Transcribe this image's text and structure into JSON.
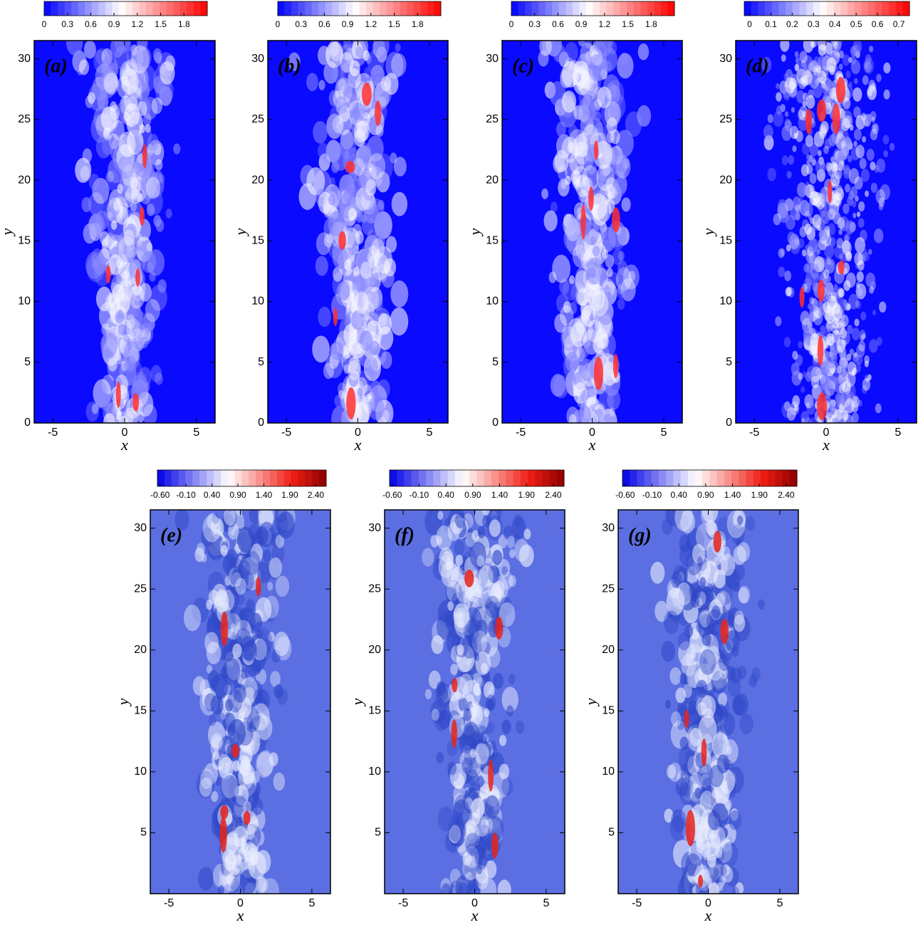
{
  "chart_data": [
    {
      "type": "contour",
      "panel_label": "(a)",
      "xlabel": "x",
      "ylabel": "y",
      "xlim": [
        -6.3,
        6.3
      ],
      "ylim": [
        0,
        31.5
      ],
      "xticks": [
        -5,
        0,
        5
      ],
      "yticks": [
        0,
        5,
        10,
        15,
        20,
        25,
        30
      ],
      "colorbar_lim": [
        0,
        2.1
      ],
      "colorbar_ticks": [
        0,
        0.3,
        0.6,
        0.9,
        1.2,
        1.5,
        1.8
      ]
    },
    {
      "type": "contour",
      "panel_label": "(b)",
      "xlabel": "x",
      "ylabel": "y",
      "xlim": [
        -6.3,
        6.3
      ],
      "ylim": [
        0,
        31.5
      ],
      "xticks": [
        -5,
        0,
        5
      ],
      "yticks": [
        0,
        5,
        10,
        15,
        20,
        25,
        30
      ],
      "colorbar_lim": [
        0,
        2.1
      ],
      "colorbar_ticks": [
        0,
        0.3,
        0.6,
        0.9,
        1.2,
        1.5,
        1.8
      ]
    },
    {
      "type": "contour",
      "panel_label": "(c)",
      "xlabel": "x",
      "ylabel": "y",
      "xlim": [
        -6.3,
        6.3
      ],
      "ylim": [
        0,
        31.5
      ],
      "xticks": [
        -5,
        0,
        5
      ],
      "yticks": [
        0,
        5,
        10,
        15,
        20,
        25,
        30
      ],
      "colorbar_lim": [
        0,
        2.1
      ],
      "colorbar_ticks": [
        0,
        0.3,
        0.6,
        0.9,
        1.2,
        1.5,
        1.8
      ]
    },
    {
      "type": "contour",
      "panel_label": "(d)",
      "xlabel": "x",
      "ylabel": "y",
      "xlim": [
        -6.3,
        6.3
      ],
      "ylim": [
        0,
        31.5
      ],
      "xticks": [
        -5,
        0,
        5
      ],
      "yticks": [
        0,
        5,
        10,
        15,
        20,
        25,
        30
      ],
      "colorbar_lim": [
        -0.025,
        0.75
      ],
      "colorbar_ticks": [
        0,
        0.1,
        0.2,
        0.3,
        0.4,
        0.5,
        0.6,
        0.7
      ]
    },
    {
      "type": "contour",
      "panel_label": "(e)",
      "xlabel": "x",
      "ylabel": "y",
      "xlim": [
        -6.3,
        6.3
      ],
      "ylim": [
        0,
        31.5
      ],
      "xticks": [
        -5,
        0,
        5
      ],
      "yticks": [
        5,
        10,
        15,
        20,
        25,
        30
      ],
      "colorbar_lim": [
        -0.65,
        2.6
      ],
      "colorbar_ticks": [
        {
          "value": -0.6,
          "label": "-0.60"
        },
        {
          "value": -0.1,
          "label": "-0.10"
        },
        {
          "value": 0.4,
          "label": "0.40"
        },
        {
          "value": 0.9,
          "label": "0.90"
        },
        {
          "value": 1.4,
          "label": "1.40"
        },
        {
          "value": 1.9,
          "label": "1.90"
        },
        {
          "value": 2.4,
          "label": "2.40"
        }
      ]
    },
    {
      "type": "contour",
      "panel_label": "(f)",
      "xlabel": "x",
      "ylabel": "y",
      "xlim": [
        -6.3,
        6.3
      ],
      "ylim": [
        0,
        31.5
      ],
      "xticks": [
        -5,
        0,
        5
      ],
      "yticks": [
        5,
        10,
        15,
        20,
        25,
        30
      ],
      "colorbar_lim": [
        -0.65,
        2.6
      ],
      "colorbar_ticks": [
        {
          "value": -0.6,
          "label": "-0.60"
        },
        {
          "value": -0.1,
          "label": "-0.10"
        },
        {
          "value": 0.4,
          "label": "0.40"
        },
        {
          "value": 0.9,
          "label": "0.90"
        },
        {
          "value": 1.4,
          "label": "1.40"
        },
        {
          "value": 1.9,
          "label": "1.90"
        },
        {
          "value": 2.4,
          "label": "2.40"
        }
      ]
    },
    {
      "type": "contour",
      "panel_label": "(g)",
      "xlabel": "x",
      "ylabel": "y",
      "xlim": [
        -6.3,
        6.3
      ],
      "ylim": [
        0,
        31.5
      ],
      "xticks": [
        -5,
        0,
        5
      ],
      "yticks": [
        5,
        10,
        15,
        20,
        25,
        30
      ],
      "colorbar_lim": [
        -0.65,
        2.6
      ],
      "colorbar_ticks": [
        {
          "value": -0.6,
          "label": "-0.60"
        },
        {
          "value": -0.1,
          "label": "-0.10"
        },
        {
          "value": 0.4,
          "label": "0.40"
        },
        {
          "value": 0.9,
          "label": "0.90"
        },
        {
          "value": 1.4,
          "label": "1.40"
        },
        {
          "value": 1.9,
          "label": "1.90"
        },
        {
          "value": 2.4,
          "label": "2.40"
        }
      ]
    }
  ]
}
